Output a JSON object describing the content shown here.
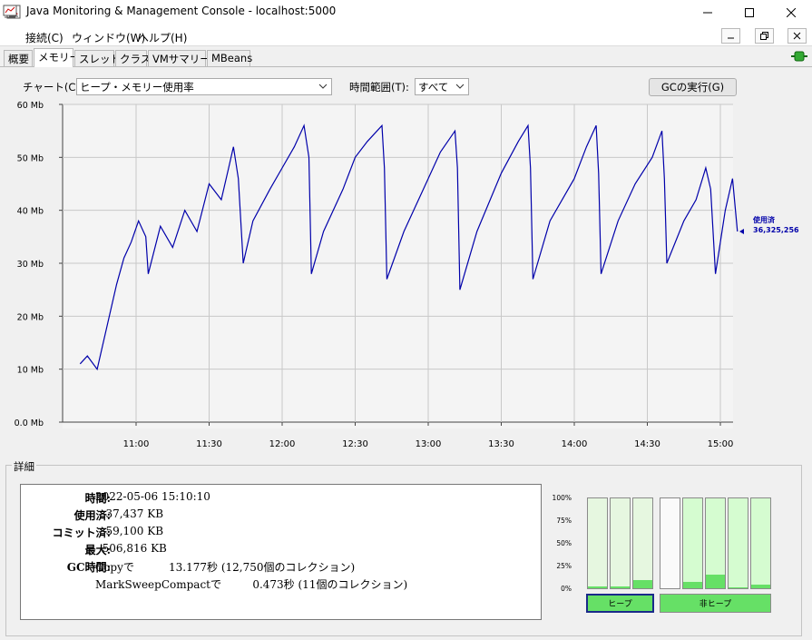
{
  "window": {
    "title": "Java Monitoring & Management Console - localhost:5000"
  },
  "menu": {
    "items": [
      "接続(C)",
      "ウィンドウ(W)",
      "ヘルプ(H)"
    ]
  },
  "tabs": [
    "概要",
    "メモリー",
    "スレッド",
    "クラス",
    "VMサマリー",
    "MBeans"
  ],
  "active_tab": "メモリー",
  "controls": {
    "chart_label": "チャート(C):",
    "chart_value": "ヒープ・メモリー使用率",
    "range_label": "時間範囲(T):",
    "range_value": "すべて",
    "gc_button": "GCの実行(G)"
  },
  "chart_data": {
    "type": "line",
    "yticks": [
      "0.0 Mb",
      "10 Mb",
      "20 Mb",
      "30 Mb",
      "40 Mb",
      "50 Mb",
      "60 Mb"
    ],
    "xticks": [
      "11:00",
      "11:30",
      "12:00",
      "12:30",
      "13:00",
      "13:30",
      "14:00",
      "14:30",
      "15:00"
    ],
    "ylim": [
      0,
      60
    ],
    "series_color": "#0000aa",
    "current_label": "使用済",
    "current_value": "36,325,256",
    "series": [
      {
        "name": "使用済",
        "points": [
          [
            "10:37",
            11
          ],
          [
            "10:40",
            12.5
          ],
          [
            "10:44",
            10
          ],
          [
            "10:48",
            18
          ],
          [
            "10:52",
            26
          ],
          [
            "10:55",
            31
          ],
          [
            "10:58",
            34
          ],
          [
            "11:01",
            38
          ],
          [
            "11:04",
            35
          ],
          [
            "11:05",
            28
          ],
          [
            "11:10",
            37
          ],
          [
            "11:15",
            33
          ],
          [
            "11:20",
            40
          ],
          [
            "11:25",
            36
          ],
          [
            "11:30",
            45
          ],
          [
            "11:35",
            42
          ],
          [
            "11:38",
            48
          ],
          [
            "11:40",
            52
          ],
          [
            "11:42",
            46
          ],
          [
            "11:44",
            30
          ],
          [
            "11:48",
            38
          ],
          [
            "11:55",
            44
          ],
          [
            "12:00",
            48
          ],
          [
            "12:05",
            52
          ],
          [
            "12:09",
            56
          ],
          [
            "12:11",
            50
          ],
          [
            "12:12",
            28
          ],
          [
            "12:17",
            36
          ],
          [
            "12:25",
            44
          ],
          [
            "12:30",
            50
          ],
          [
            "12:35",
            53
          ],
          [
            "12:41",
            56
          ],
          [
            "12:42",
            48
          ],
          [
            "12:43",
            27
          ],
          [
            "12:50",
            36
          ],
          [
            "13:00",
            46
          ],
          [
            "13:05",
            51
          ],
          [
            "13:11",
            55
          ],
          [
            "13:12",
            48
          ],
          [
            "13:13",
            25
          ],
          [
            "13:20",
            36
          ],
          [
            "13:30",
            47
          ],
          [
            "13:37",
            53
          ],
          [
            "13:41",
            56
          ],
          [
            "13:42",
            48
          ],
          [
            "13:43",
            27
          ],
          [
            "13:50",
            38
          ],
          [
            "14:00",
            46
          ],
          [
            "14:05",
            52
          ],
          [
            "14:09",
            56
          ],
          [
            "14:10",
            47
          ],
          [
            "14:11",
            28
          ],
          [
            "14:18",
            38
          ],
          [
            "14:25",
            45
          ],
          [
            "14:32",
            50
          ],
          [
            "14:36",
            55
          ],
          [
            "14:37",
            46
          ],
          [
            "14:38",
            30
          ],
          [
            "14:45",
            38
          ],
          [
            "14:50",
            42
          ],
          [
            "14:54",
            48
          ],
          [
            "14:56",
            44
          ],
          [
            "14:58",
            28
          ],
          [
            "15:02",
            40
          ],
          [
            "15:05",
            46
          ],
          [
            "15:07",
            36
          ]
        ]
      }
    ]
  },
  "details": {
    "title": "詳細",
    "rows": [
      {
        "key": "時間:",
        "value": "2022-05-06 15:10:10"
      },
      {
        "key": "使用済:",
        "value": "   37,437 KB"
      },
      {
        "key": "コミット済:",
        "value": "   59,100 KB"
      },
      {
        "key": "最大:",
        "value": "  506,816 KB"
      },
      {
        "key": "GC時間:",
        "value": "Copyで          13.177秒 (12,750個のコレクション)"
      }
    ],
    "gc_second_line": "MarkSweepCompactで         0.473秒 (11個のコレクション)"
  },
  "pool_bars": {
    "pct_labels": [
      "100%",
      "75%",
      "50%",
      "25%",
      "0%"
    ],
    "heap": [
      2,
      2,
      9
    ],
    "nonheap": [
      0,
      7,
      15,
      1,
      4
    ],
    "heap_label": "ヒープ",
    "nonheap_label": "非ヒープ"
  },
  "colors": {
    "line": "#0000aa",
    "bar_fill": "#66e066",
    "bar_bg": "#e6f7e0"
  }
}
